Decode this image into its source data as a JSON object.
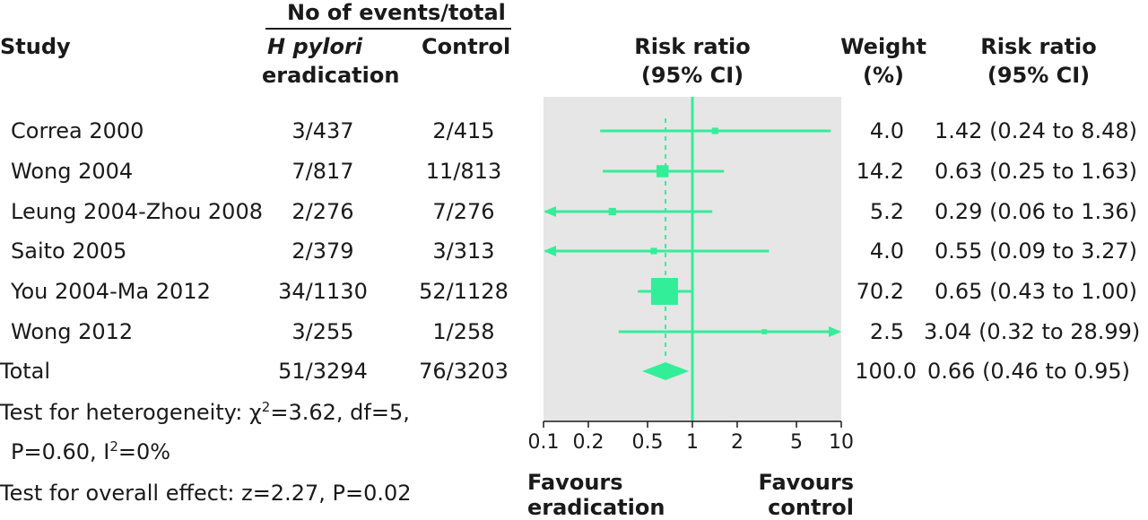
{
  "header": {
    "group_title": "No of events/total",
    "study_col": "Study",
    "treat_col_line1": "H pylori",
    "treat_col_line2": "eradication",
    "control_col": "Control",
    "plot_col_line1": "Risk ratio",
    "plot_col_line2": "(95% CI)",
    "weight_col_line1": "Weight",
    "weight_col_line2": "(%)",
    "rr_col_line1": "Risk ratio",
    "rr_col_line2": "(95% CI)"
  },
  "rows": [
    {
      "study": "Correa 2000",
      "treat": "3/437",
      "control": "2/415",
      "weight": "4.0",
      "rr_text": "1.42 (0.24 to 8.48)"
    },
    {
      "study": "Wong 2004",
      "treat": "7/817",
      "control": "11/813",
      "weight": "14.2",
      "rr_text": "0.63 (0.25 to 1.63)"
    },
    {
      "study": "Leung 2004-Zhou 2008",
      "treat": "2/276",
      "control": "7/276",
      "weight": "5.2",
      "rr_text": "0.29 (0.06 to 1.36)"
    },
    {
      "study": "Saito 2005",
      "treat": "2/379",
      "control": "3/313",
      "weight": "4.0",
      "rr_text": "0.55 (0.09 to 3.27)"
    },
    {
      "study": "You 2004-Ma 2012",
      "treat": "34/1130",
      "control": "52/1128",
      "weight": "70.2",
      "rr_text": "0.65 (0.43 to 1.00)"
    },
    {
      "study": "Wong 2012",
      "treat": "3/255",
      "control": "1/258",
      "weight": "2.5",
      "rr_text": "3.04 (0.32 to 28.99)"
    }
  ],
  "total": {
    "label": "Total",
    "treat": "51/3294",
    "control": "76/3203",
    "weight": "100.0",
    "rr_text": "0.66 (0.46 to 0.95)"
  },
  "footer": {
    "het_line1_pre": "Test for heterogeneity: χ",
    "het_line1_sup": "2",
    "het_line1_post": "=3.62, df=5,",
    "het_line2_pre": "P=0.60, I",
    "het_line2_sup": "2",
    "het_line2_post": "=0%",
    "overall": "Test for overall effect: z=2.27, P=0.02"
  },
  "favours": {
    "left_line1": "Favours",
    "left_line2": "eradication",
    "right_line1": "Favours",
    "right_line2": "control"
  },
  "colors": {
    "marker": "#33ee99",
    "panel": "#e6e6e6",
    "text": "#1a1a1a"
  },
  "chart_data": {
    "type": "forest",
    "x_scale": "log",
    "xlim": [
      0.1,
      10
    ],
    "x_ticks": [
      0.1,
      0.2,
      0.5,
      1,
      2,
      5,
      10
    ],
    "x_tick_labels": [
      "0.1",
      "0.2",
      "0.5",
      "1",
      "2",
      "5",
      "10"
    ],
    "reference_line": 1,
    "studies": [
      {
        "label": "Correa 2000",
        "rr": 1.42,
        "lo": 0.24,
        "hi": 8.48,
        "weight": 4.0
      },
      {
        "label": "Wong 2004",
        "rr": 0.63,
        "lo": 0.25,
        "hi": 1.63,
        "weight": 14.2
      },
      {
        "label": "Leung 2004-Zhou 2008",
        "rr": 0.29,
        "lo": 0.06,
        "hi": 1.36,
        "weight": 5.2
      },
      {
        "label": "Saito 2005",
        "rr": 0.55,
        "lo": 0.09,
        "hi": 3.27,
        "weight": 4.0
      },
      {
        "label": "You 2004-Ma 2012",
        "rr": 0.65,
        "lo": 0.43,
        "hi": 1.0,
        "weight": 70.2
      },
      {
        "label": "Wong 2012",
        "rr": 3.04,
        "lo": 0.32,
        "hi": 28.99,
        "weight": 2.5
      }
    ],
    "pooled": {
      "label": "Total",
      "rr": 0.66,
      "lo": 0.46,
      "hi": 0.95
    }
  }
}
